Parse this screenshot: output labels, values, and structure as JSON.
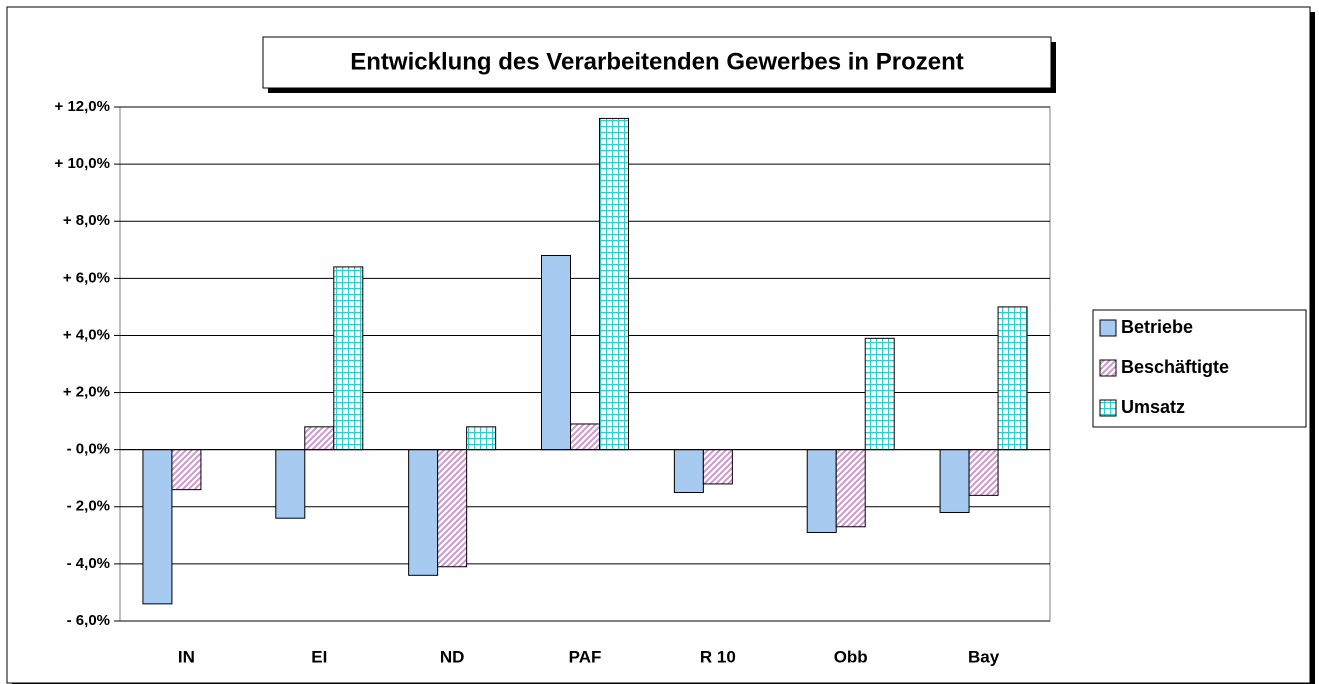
{
  "chart_data": {
    "type": "bar",
    "title": "Entwicklung des Verarbeitenden Gewerbes in Prozent",
    "categories": [
      "IN",
      "EI",
      "ND",
      "PAF",
      "R 10",
      "Obb",
      "Bay"
    ],
    "series": [
      {
        "name": "Betriebe",
        "color": "#a6caf0",
        "pattern": "solid",
        "values": [
          -5.4,
          -2.4,
          -4.4,
          6.8,
          -1.5,
          -2.9,
          -2.2
        ]
      },
      {
        "name": "Beschäftigte",
        "color": "#cc99cc",
        "pattern": "diagonal",
        "values": [
          -1.4,
          0.8,
          -4.1,
          0.9,
          -1.2,
          -2.7,
          -1.6
        ]
      },
      {
        "name": "Umsatz",
        "color": "#33cccc",
        "pattern": "grid",
        "values": [
          null,
          6.4,
          0.8,
          11.6,
          null,
          3.9,
          5.0
        ]
      }
    ],
    "ylim": [
      -6,
      12
    ],
    "yticks": [
      {
        "value": -6,
        "label": "- 6,0%"
      },
      {
        "value": -4,
        "label": "- 4,0%"
      },
      {
        "value": -2,
        "label": "- 2,0%"
      },
      {
        "value": 0,
        "label": "- 0,0%"
      },
      {
        "value": 2,
        "label": "+ 2,0%"
      },
      {
        "value": 4,
        "label": "+ 4,0%"
      },
      {
        "value": 6,
        "label": "+ 6,0%"
      },
      {
        "value": 8,
        "label": "+ 8,0%"
      },
      {
        "value": 10,
        "label": "+ 10,0%"
      },
      {
        "value": 12,
        "label": "+ 12,0%"
      }
    ],
    "grid": true,
    "legend": "right"
  }
}
